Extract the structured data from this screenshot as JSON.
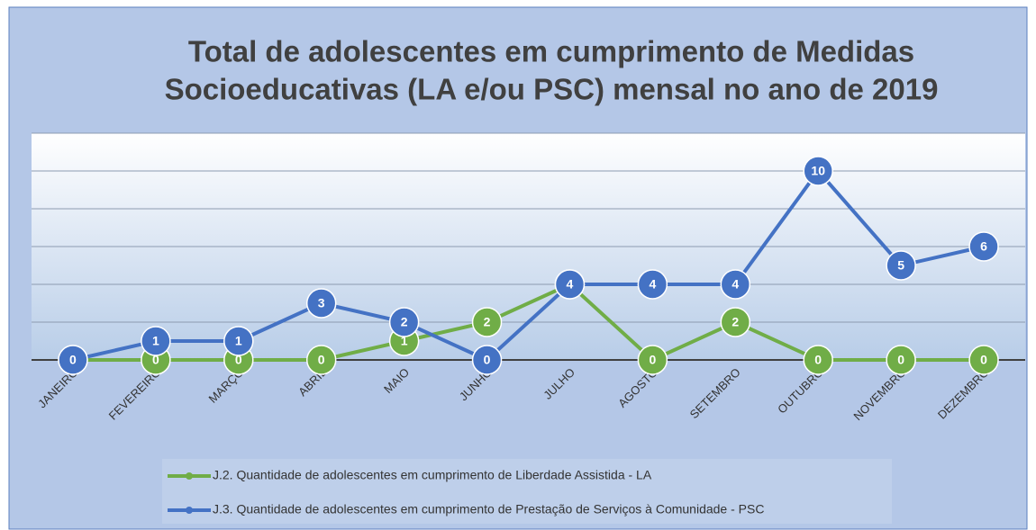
{
  "chart_data": {
    "type": "line",
    "title": [
      "Total de adolescentes em cumprimento de Medidas",
      "Socioeducativas (LA e/ou PSC) mensal no ano de 2019"
    ],
    "categories": [
      "JANEIRO",
      "FEVEREIRO",
      "MARÇO",
      "ABRIL",
      "MAIO",
      "JUNHO",
      "JULHO",
      "AGOSTO",
      "SETEMBRO",
      "OUTUBRO",
      "NOVEMBRO",
      "DEZEMBRO"
    ],
    "series": [
      {
        "name": "J.2. Quantidade de adolescentes em cumprimento de Liberdade Assistida - LA",
        "color": "#70ad47",
        "values": [
          0,
          0,
          0,
          0,
          1,
          2,
          4,
          0,
          2,
          0,
          0,
          0
        ]
      },
      {
        "name": "J.3. Quantidade de adolescentes em cumprimento de Prestação de Serviços à Comunidade - PSC",
        "color": "#4472c4",
        "values": [
          0,
          1,
          1,
          3,
          2,
          0,
          4,
          4,
          4,
          10,
          5,
          6
        ]
      }
    ],
    "ylim": [
      0,
      12
    ],
    "yticks": [
      0,
      2,
      4,
      6,
      8,
      10,
      12
    ],
    "grid": true
  }
}
